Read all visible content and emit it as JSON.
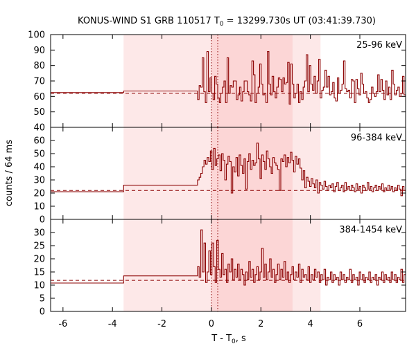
{
  "chart_data": {
    "type": "line",
    "title_main": "KONUS-WIND S1 GRB 110517 T",
    "title_sub": "0",
    "title_rest": " = 13299.730s UT (03:41:39.730)",
    "xlabel_main": "T - T",
    "xlabel_sub": "0",
    "xlabel_rest": ", s",
    "ylabel": "counts / 64 ms",
    "xlim": [
      -6.5,
      7.85
    ],
    "x_ticks": [
      -6,
      -4,
      -2,
      0,
      2,
      4,
      6
    ],
    "x_tick_labels": [
      "-6",
      "-4",
      "-2",
      "0",
      "2",
      "4",
      "6"
    ],
    "shaded_regions": [
      {
        "from": -3.55,
        "to": 4.41,
        "color": "#fde8e8"
      },
      {
        "from": 0.0,
        "to": 3.28,
        "color": "#fcd6d6"
      }
    ],
    "vertical_markers": [
      0.0,
      0.256
    ],
    "colors": {
      "series": "#8b0000",
      "axis": "#000000"
    },
    "panels": [
      {
        "band_label": "25-96 keV",
        "ylim": [
          40,
          100
        ],
        "y_ticks": [
          40,
          50,
          60,
          70,
          80,
          90,
          100
        ],
        "y_tick_labels": [
          "40",
          "50",
          "60",
          "70",
          "80",
          "90",
          "100"
        ],
        "background_level": 62,
        "steps": [
          [
            -6.5,
            -3.55,
            62.5
          ],
          [
            -3.55,
            -0.56,
            63.5
          ]
        ],
        "fine_range": [
          -0.56,
          7.85
        ],
        "fine_values": [
          58,
          67,
          66,
          85,
          63,
          56,
          89,
          63,
          72,
          62,
          58,
          73,
          68,
          59,
          56,
          62,
          66,
          70,
          56,
          85,
          62,
          67,
          66,
          70,
          70,
          58,
          61,
          66,
          57,
          63,
          70,
          70,
          63,
          61,
          57,
          83,
          74,
          56,
          62,
          66,
          81,
          68,
          61,
          62,
          56,
          89,
          68,
          61,
          73,
          63,
          59,
          66,
          72,
          71,
          63,
          72,
          68,
          69,
          82,
          55,
          81,
          68,
          59,
          62,
          68,
          56,
          63,
          58,
          66,
          70,
          87,
          63,
          80,
          68,
          64,
          73,
          62,
          70,
          84,
          59,
          64,
          66,
          77,
          66,
          73,
          61,
          63,
          69,
          59,
          57,
          72,
          62,
          64,
          68,
          83,
          65,
          63,
          64,
          59,
          71,
          70,
          56,
          71,
          65,
          61,
          75,
          68,
          62,
          63,
          59,
          56,
          58,
          66,
          62,
          60,
          63,
          74,
          63,
          71,
          64,
          58,
          70,
          61,
          66,
          58,
          77,
          68,
          61,
          64,
          66,
          60,
          62,
          73,
          61
        ]
      },
      {
        "band_label": "96-384 keV",
        "ylim": [
          0,
          70
        ],
        "y_ticks": [
          0,
          10,
          20,
          30,
          40,
          50,
          60
        ],
        "y_tick_labels": [
          "0",
          "10",
          "20",
          "30",
          "40",
          "50",
          "60"
        ],
        "background_level": 22,
        "steps": [
          [
            -6.5,
            -3.55,
            21
          ],
          [
            -3.55,
            -0.56,
            26
          ]
        ],
        "fine_range": [
          -0.56,
          7.85
        ],
        "fine_values": [
          30,
          32,
          35,
          40,
          45,
          42,
          47,
          44,
          52,
          38,
          54,
          41,
          46,
          49,
          37,
          50,
          45,
          30,
          42,
          48,
          44,
          20,
          40,
          36,
          47,
          33,
          49,
          41,
          35,
          46,
          23,
          44,
          50,
          38,
          45,
          41,
          43,
          58,
          46,
          31,
          49,
          44,
          38,
          52,
          46,
          40,
          35,
          47,
          43,
          41,
          38,
          22,
          46,
          44,
          49,
          40,
          47,
          43,
          51,
          45,
          36,
          48,
          42,
          46,
          39,
          30,
          37,
          24,
          32,
          29,
          25,
          31,
          27,
          24,
          30,
          20,
          28,
          26,
          23,
          29,
          25,
          22,
          26,
          24,
          27,
          21,
          25,
          28,
          22,
          24,
          26,
          21,
          28,
          23,
          25,
          22,
          26,
          24,
          21,
          27,
          23,
          25,
          20,
          26,
          24,
          22,
          28,
          23,
          25,
          21,
          24,
          26,
          22,
          25,
          23,
          27,
          21,
          24,
          22,
          26,
          23,
          25,
          21,
          24,
          22,
          26,
          23,
          18,
          25,
          22
        ]
      },
      {
        "band_label": "384-1454 keV",
        "ylim": [
          0,
          35
        ],
        "y_ticks": [
          0,
          5,
          10,
          15,
          20,
          25,
          30
        ],
        "y_tick_labels": [
          "0",
          "5",
          "10",
          "15",
          "20",
          "25",
          "30"
        ],
        "background_level": 11.8,
        "steps": [
          [
            -6.5,
            -3.55,
            10.8
          ],
          [
            -3.55,
            -0.56,
            13.5
          ]
        ],
        "fine_range": [
          -0.56,
          7.85
        ],
        "fine_values": [
          17,
          13,
          31,
          15,
          26,
          11,
          15,
          23,
          14,
          26,
          17,
          11,
          27,
          16,
          13,
          22,
          14,
          16,
          11,
          18,
          15,
          20,
          12,
          16,
          13,
          18,
          12,
          16,
          14,
          10,
          15,
          12,
          19,
          13,
          16,
          11,
          14,
          17,
          12,
          15,
          24,
          13,
          18,
          12,
          15,
          20,
          13,
          16,
          11,
          14,
          18,
          12,
          16,
          13,
          19,
          12,
          15,
          11,
          14,
          17,
          12,
          15,
          13,
          18,
          11,
          16,
          13,
          14,
          12,
          17,
          11,
          14,
          12,
          16,
          13,
          15,
          11,
          14,
          12,
          16,
          10,
          13,
          12,
          15,
          11,
          14,
          12,
          13,
          10,
          15,
          12,
          14,
          11,
          13,
          12,
          16,
          11,
          14,
          12,
          13,
          10,
          15,
          12,
          14,
          11,
          13,
          12,
          15,
          11,
          13,
          12,
          14,
          10,
          13,
          12,
          15,
          11,
          14,
          12,
          13,
          11,
          15,
          12,
          14,
          11,
          13,
          12,
          16,
          11,
          14
        ]
      }
    ]
  }
}
